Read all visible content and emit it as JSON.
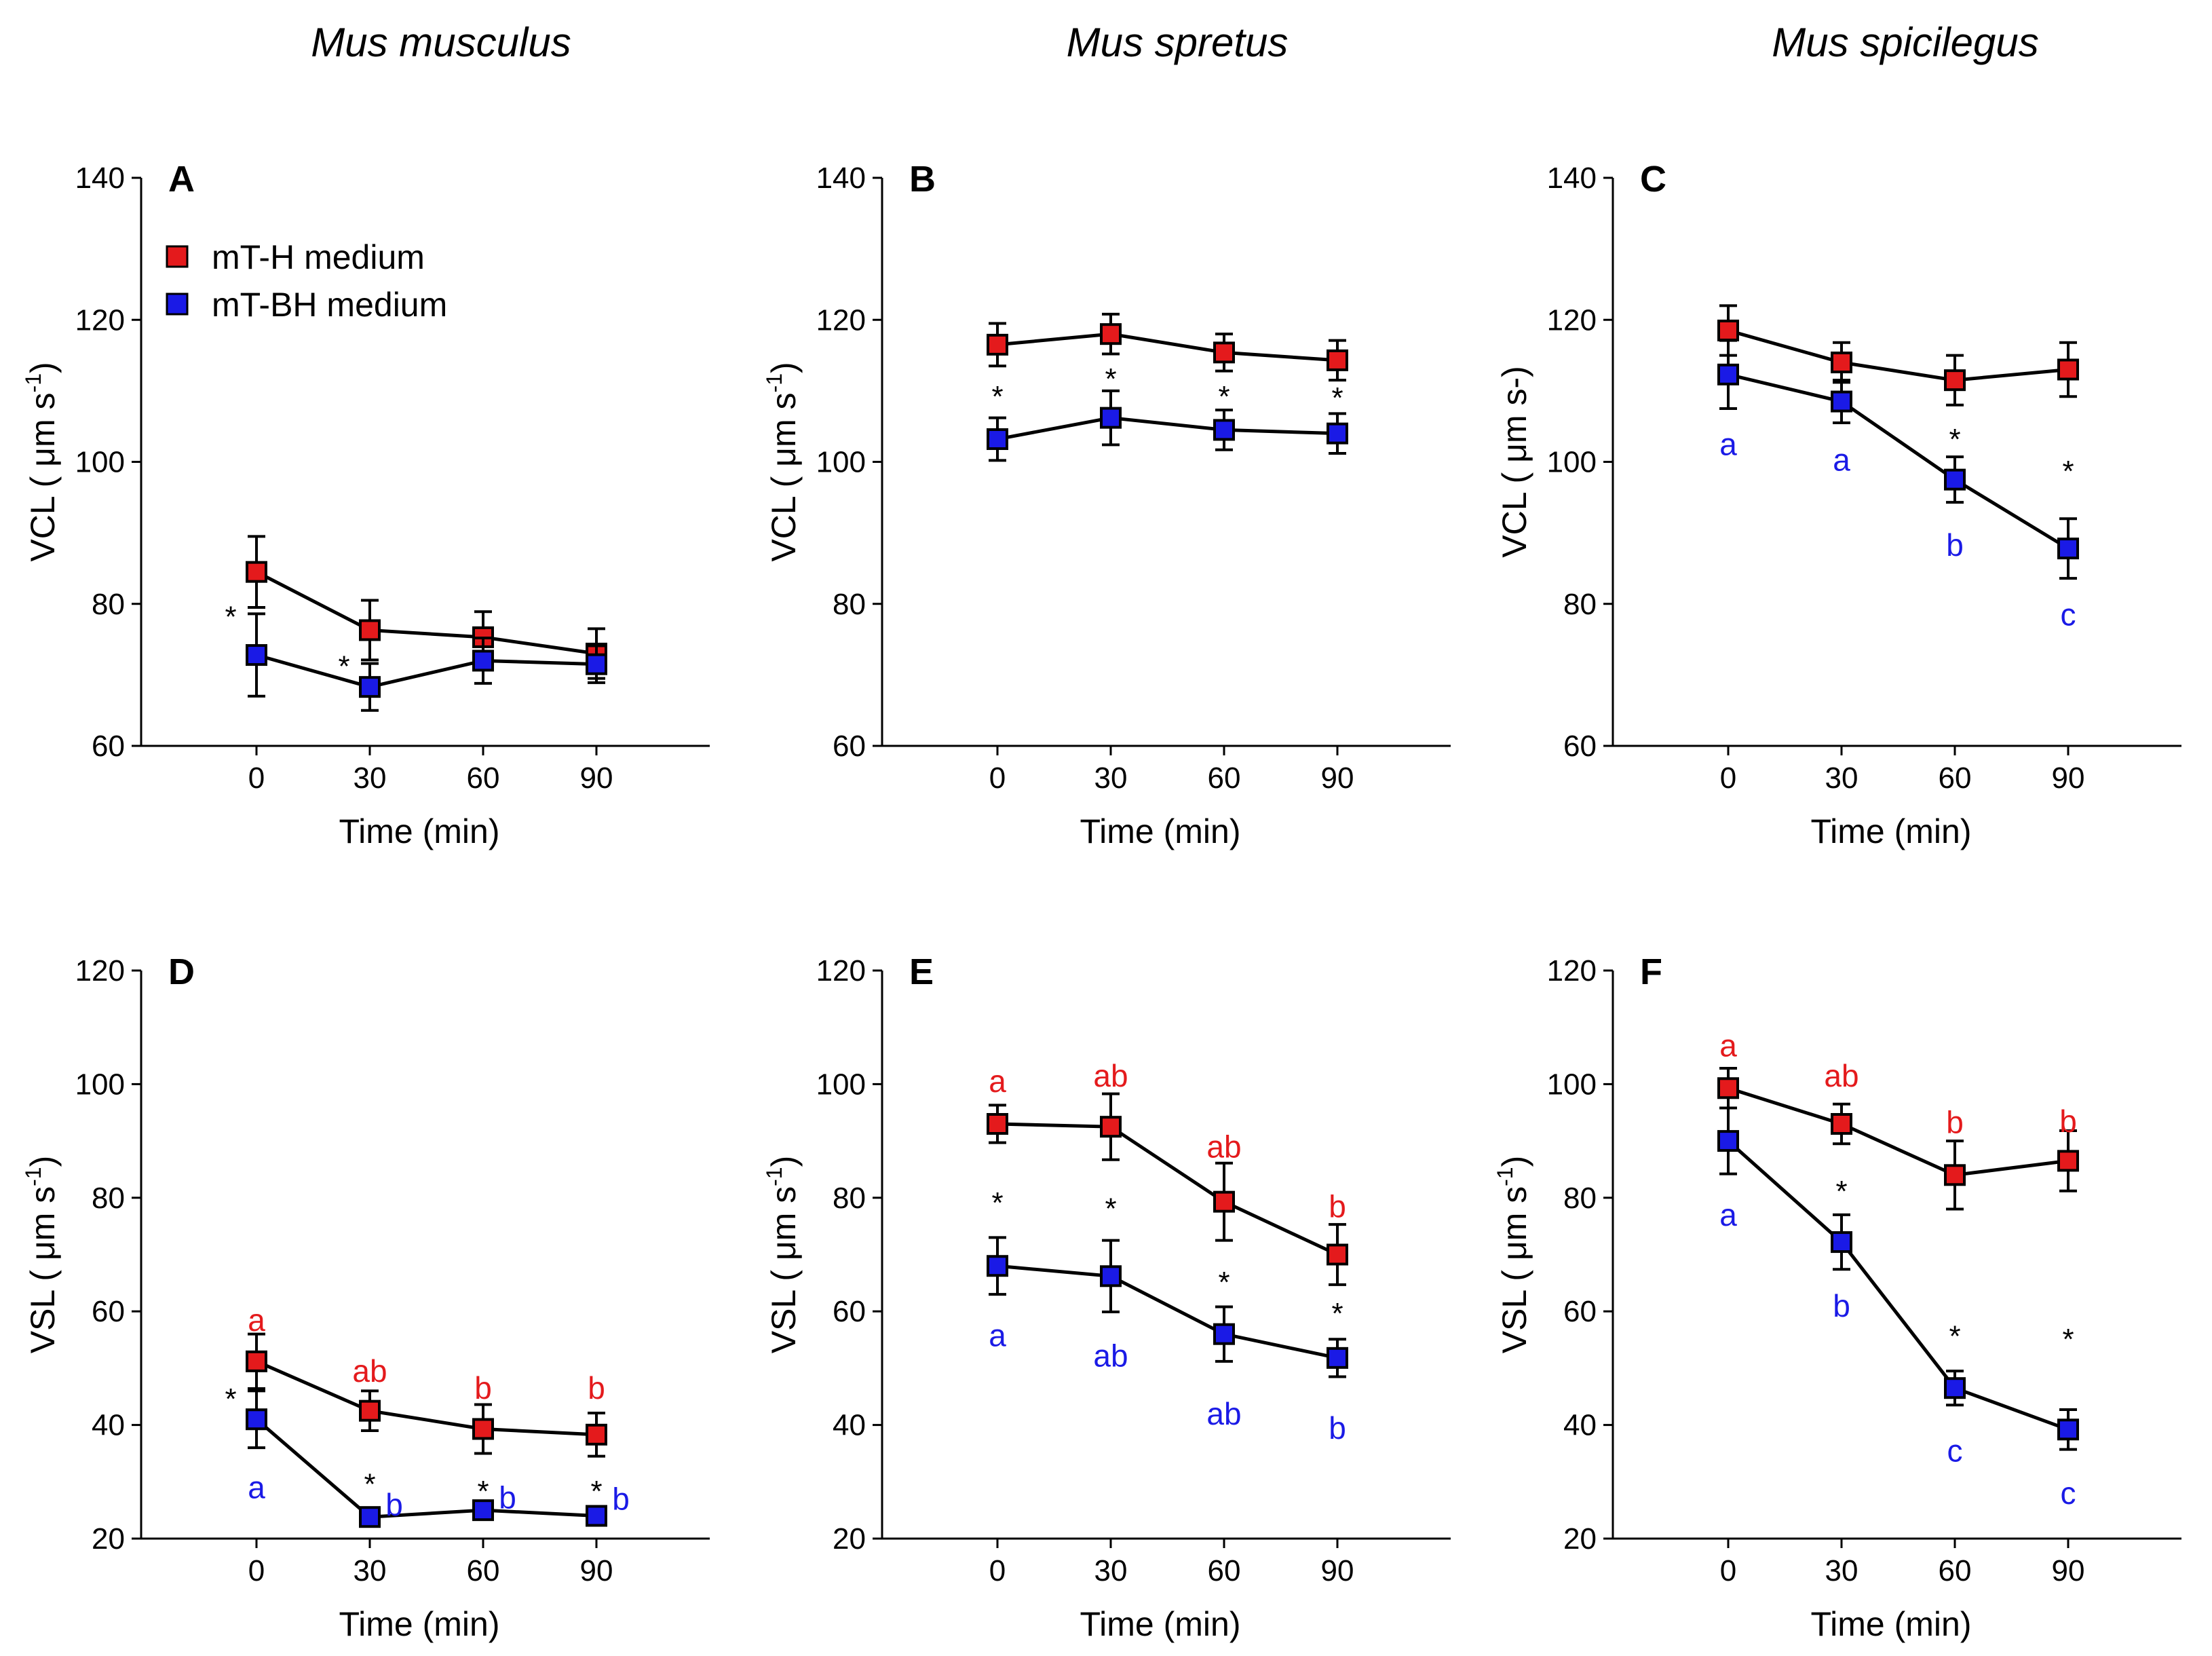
{
  "column_titles": [
    "Mus musculus",
    "Mus spretus",
    "Mus spicilegus"
  ],
  "legend": [
    {
      "label": "mT-H medium",
      "color": "#e41a1c"
    },
    {
      "label": "mT-BH medium",
      "color": "#1a1ae6"
    }
  ],
  "colors": {
    "red_series": "#e41a1c",
    "blue_series": "#1a1ae6",
    "axis": "#000000"
  },
  "chart_data": [
    {
      "panel": "A",
      "type": "line",
      "column": "Mus musculus",
      "xlabel": "Time (min)",
      "ylabel": "VCL ( μm s",
      "ylabel_sup": "-1",
      "ylabel_end": ")",
      "x": [
        0,
        30,
        60,
        90
      ],
      "xticks": [
        "0",
        "30",
        "60",
        "90"
      ],
      "ylim": [
        60,
        140
      ],
      "yticks": [
        60,
        80,
        100,
        120,
        140
      ],
      "series": [
        {
          "name": "mT-H medium",
          "values": [
            84.5,
            76.3,
            75.3,
            73.0
          ],
          "err": [
            5.0,
            4.2,
            3.6,
            3.5
          ]
        },
        {
          "name": "mT-BH medium",
          "values": [
            72.8,
            68.3,
            72.0,
            71.5
          ],
          "err": [
            5.8,
            3.3,
            3.2,
            2.6
          ]
        }
      ],
      "stars": [
        {
          "x": 0,
          "y": 78.5,
          "offset": "left"
        },
        {
          "x": 30,
          "y": 71.5,
          "offset": "left"
        }
      ],
      "letters": []
    },
    {
      "panel": "B",
      "type": "line",
      "column": "Mus spretus",
      "xlabel": "Time (min)",
      "ylabel": "VCL ( μm s",
      "ylabel_sup": "-1",
      "ylabel_end": ")",
      "x": [
        0,
        30,
        60,
        90
      ],
      "xticks": [
        "0",
        "30",
        "60",
        "90"
      ],
      "ylim": [
        60,
        140
      ],
      "yticks": [
        60,
        80,
        100,
        120,
        140
      ],
      "series": [
        {
          "name": "mT-H medium",
          "values": [
            116.5,
            118.0,
            115.4,
            114.3
          ],
          "err": [
            3.0,
            2.8,
            2.6,
            2.8
          ]
        },
        {
          "name": "mT-BH medium",
          "values": [
            103.2,
            106.2,
            104.5,
            104.0
          ],
          "err": [
            3.0,
            3.8,
            2.8,
            2.8
          ]
        }
      ],
      "stars": [
        {
          "x": 0,
          "y": 109.5
        },
        {
          "x": 30,
          "y": 112.0
        },
        {
          "x": 60,
          "y": 109.5
        },
        {
          "x": 90,
          "y": 109.3
        }
      ],
      "letters": []
    },
    {
      "panel": "C",
      "type": "line",
      "column": "Mus spicilegus",
      "xlabel": "Time (min)",
      "ylabel": "VCL ( μm s-",
      "ylabel_sup": "",
      "ylabel_end": ")",
      "x": [
        0,
        30,
        60,
        90
      ],
      "xticks": [
        "0",
        "30",
        "60",
        "90"
      ],
      "ylim": [
        60,
        140
      ],
      "yticks": [
        60,
        80,
        100,
        120,
        140
      ],
      "series": [
        {
          "name": "mT-H medium",
          "values": [
            118.5,
            114.0,
            111.5,
            113.0
          ],
          "err": [
            3.5,
            2.8,
            3.5,
            3.8
          ]
        },
        {
          "name": "mT-BH medium",
          "values": [
            112.3,
            108.5,
            97.5,
            87.8
          ],
          "err": [
            4.8,
            3.0,
            3.2,
            4.2
          ]
        }
      ],
      "stars": [
        {
          "x": 60,
          "y": 103.5
        },
        {
          "x": 90,
          "y": 99.0
        }
      ],
      "letters": [
        {
          "x": 0,
          "y": 102.5,
          "text": "a",
          "series": 1
        },
        {
          "x": 30,
          "y": 100.3,
          "text": "a",
          "series": 1
        },
        {
          "x": 60,
          "y": 88.3,
          "text": "b",
          "series": 1
        },
        {
          "x": 90,
          "y": 78.5,
          "text": "c",
          "series": 1
        }
      ]
    },
    {
      "panel": "D",
      "type": "line",
      "column": "Mus musculus",
      "xlabel": "Time (min)",
      "ylabel": "VSL ( μm s",
      "ylabel_sup": "-1",
      "ylabel_end": ")",
      "x": [
        0,
        30,
        60,
        90
      ],
      "xticks": [
        "0",
        "30",
        "60",
        "90"
      ],
      "ylim": [
        20,
        120
      ],
      "yticks": [
        20,
        40,
        60,
        80,
        100,
        120
      ],
      "series": [
        {
          "name": "mT-H medium",
          "values": [
            51.2,
            42.5,
            39.3,
            38.3
          ],
          "err": [
            4.8,
            3.5,
            4.3,
            3.8
          ]
        },
        {
          "name": "mT-BH medium",
          "values": [
            41.0,
            23.8,
            25.0,
            24.0
          ],
          "err": [
            5.0,
            1.5,
            1.2,
            1.5
          ]
        }
      ],
      "stars": [
        {
          "x": 0,
          "y": 45.0,
          "offset": "left"
        },
        {
          "x": 30,
          "y": 30.0
        },
        {
          "x": 60,
          "y": 28.7
        },
        {
          "x": 90,
          "y": 28.7
        }
      ],
      "letters": [
        {
          "x": 0,
          "y": 58.5,
          "text": "a",
          "series": 0
        },
        {
          "x": 30,
          "y": 49.5,
          "text": "ab",
          "series": 0
        },
        {
          "x": 60,
          "y": 46.5,
          "text": "b",
          "series": 0
        },
        {
          "x": 90,
          "y": 46.5,
          "text": "b",
          "series": 0
        },
        {
          "x": 0,
          "y": 29.0,
          "text": "a",
          "series": 1
        },
        {
          "x": 30,
          "y": 26.0,
          "text": "b",
          "series": 1,
          "offset": "right"
        },
        {
          "x": 60,
          "y": 27.2,
          "text": "b",
          "series": 1,
          "offset": "right"
        },
        {
          "x": 90,
          "y": 27.0,
          "text": "b",
          "series": 1,
          "offset": "right"
        }
      ]
    },
    {
      "panel": "E",
      "type": "line",
      "column": "Mus spretus",
      "xlabel": "Time (min)",
      "ylabel": "VSL ( μm s",
      "ylabel_sup": "-1",
      "ylabel_end": ")",
      "x": [
        0,
        30,
        60,
        90
      ],
      "xticks": [
        "0",
        "30",
        "60",
        "90"
      ],
      "ylim": [
        20,
        120
      ],
      "yticks": [
        20,
        40,
        60,
        80,
        100,
        120
      ],
      "series": [
        {
          "name": "mT-H medium",
          "values": [
            93.0,
            92.5,
            79.3,
            70.0
          ],
          "err": [
            3.3,
            5.8,
            6.8,
            5.3
          ]
        },
        {
          "name": "mT-BH medium",
          "values": [
            68.0,
            66.2,
            56.0,
            51.8
          ],
          "err": [
            5.0,
            6.3,
            4.8,
            3.3
          ]
        }
      ],
      "stars": [
        {
          "x": 0,
          "y": 79.5
        },
        {
          "x": 30,
          "y": 78.5
        },
        {
          "x": 60,
          "y": 65.5
        },
        {
          "x": 90,
          "y": 60.0
        }
      ],
      "letters": [
        {
          "x": 0,
          "y": 100.5,
          "text": "a",
          "series": 0
        },
        {
          "x": 30,
          "y": 101.5,
          "text": "ab",
          "series": 0
        },
        {
          "x": 60,
          "y": 89.0,
          "text": "ab",
          "series": 0
        },
        {
          "x": 90,
          "y": 78.5,
          "text": "b",
          "series": 0
        },
        {
          "x": 0,
          "y": 55.8,
          "text": "a",
          "series": 1
        },
        {
          "x": 30,
          "y": 52.2,
          "text": "ab",
          "series": 1
        },
        {
          "x": 60,
          "y": 42.0,
          "text": "ab",
          "series": 1
        },
        {
          "x": 90,
          "y": 39.5,
          "text": "b",
          "series": 1
        }
      ]
    },
    {
      "panel": "F",
      "type": "line",
      "column": "Mus spicilegus",
      "xlabel": "Time (min)",
      "ylabel": "VSL ( μm s",
      "ylabel_sup": "-1",
      "ylabel_end": ")",
      "x": [
        0,
        30,
        60,
        90
      ],
      "xticks": [
        "0",
        "30",
        "60",
        "90"
      ],
      "ylim": [
        20,
        120
      ],
      "yticks": [
        20,
        40,
        60,
        80,
        100,
        120
      ],
      "series": [
        {
          "name": "mT-H medium",
          "values": [
            99.3,
            93.0,
            84.0,
            86.5
          ],
          "err": [
            3.5,
            3.5,
            6.0,
            5.3
          ]
        },
        {
          "name": "mT-BH medium",
          "values": [
            90.0,
            72.2,
            46.5,
            39.2
          ],
          "err": [
            5.8,
            4.8,
            3.0,
            3.5
          ]
        }
      ],
      "stars": [
        {
          "x": 30,
          "y": 81.5
        },
        {
          "x": 60,
          "y": 56.0
        },
        {
          "x": 90,
          "y": 55.5
        }
      ],
      "letters": [
        {
          "x": 0,
          "y": 106.8,
          "text": "a",
          "series": 0
        },
        {
          "x": 30,
          "y": 101.5,
          "text": "ab",
          "series": 0
        },
        {
          "x": 60,
          "y": 93.3,
          "text": "b",
          "series": 0
        },
        {
          "x": 90,
          "y": 93.5,
          "text": "b",
          "series": 0
        },
        {
          "x": 0,
          "y": 77.0,
          "text": "a",
          "series": 1
        },
        {
          "x": 30,
          "y": 61.0,
          "text": "b",
          "series": 1
        },
        {
          "x": 60,
          "y": 35.5,
          "text": "c",
          "series": 1
        },
        {
          "x": 90,
          "y": 28.0,
          "text": "c",
          "series": 1
        }
      ]
    }
  ]
}
